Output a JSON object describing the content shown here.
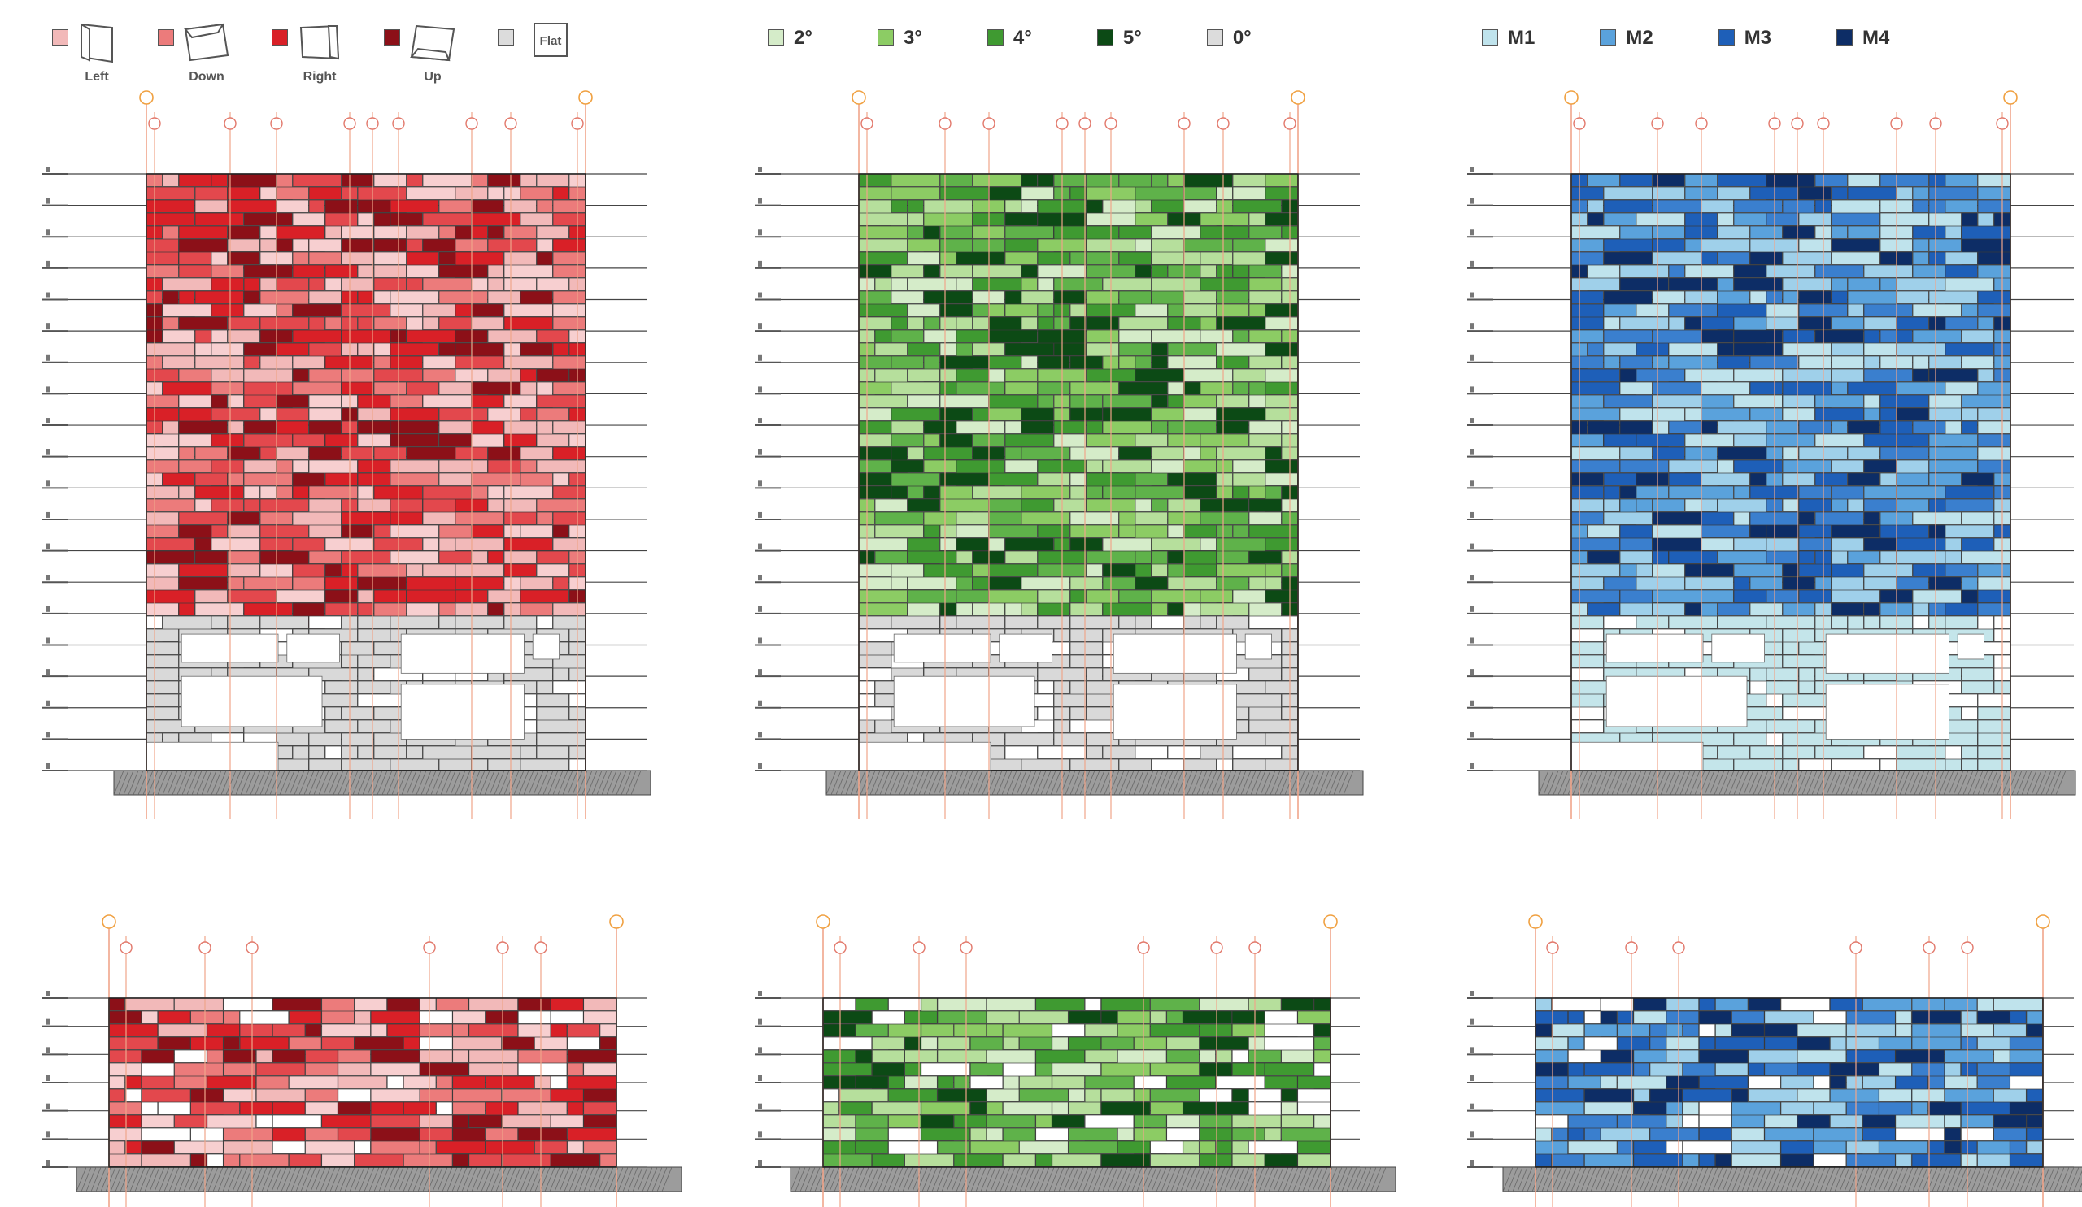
{
  "legends": {
    "orientation": {
      "items": [
        {
          "label": "Left",
          "color": "#f2b9b9",
          "icon": "panel-left-icon"
        },
        {
          "label": "Down",
          "color": "#ec7b7b",
          "icon": "panel-down-icon"
        },
        {
          "label": "Right",
          "color": "#d92027",
          "icon": "panel-right-icon"
        },
        {
          "label": "Up",
          "color": "#8c1018",
          "icon": "panel-up-icon"
        },
        {
          "label": "Flat",
          "color": "#dcdcdc",
          "icon": "panel-flat-icon",
          "icon_text": "Flat"
        }
      ]
    },
    "angle": {
      "items": [
        {
          "label": "2°",
          "color": "#d5ecc9"
        },
        {
          "label": "3°",
          "color": "#8ccc64"
        },
        {
          "label": "4°",
          "color": "#3f9a31"
        },
        {
          "label": "5°",
          "color": "#0c4a15"
        },
        {
          "label": "0°",
          "color": "#dcdcdc"
        }
      ]
    },
    "material": {
      "items": [
        {
          "label": "M1",
          "color": "#bfe3ec"
        },
        {
          "label": "M2",
          "color": "#5aa2dc"
        },
        {
          "label": "M3",
          "color": "#1e5fb8"
        },
        {
          "label": "M4",
          "color": "#0d2d66"
        }
      ]
    }
  },
  "palettes": {
    "red": [
      "#f7cfd0",
      "#f2b9b9",
      "#ec7b7b",
      "#e3484d",
      "#d92027",
      "#8c1018"
    ],
    "green": [
      "#d5ecc9",
      "#b6df9c",
      "#8ccc64",
      "#5fb24a",
      "#3f9a31",
      "#0c4a15"
    ],
    "blue": [
      "#bfe3ec",
      "#9fd0ea",
      "#5aa2dc",
      "#3a7fce",
      "#1e5fb8",
      "#0d2d66"
    ],
    "base_grey": "#d9d9d9",
    "base_light_blue": "#c4e5ea",
    "grid_line": "#333333",
    "axis_line": "#f0a58a",
    "axis_bubble": "#e2786b",
    "axis_bubble_end": "#f0a040"
  },
  "elevations": [
    {
      "id": "elevation-tall-orientation",
      "scheme": "red",
      "base": "grey",
      "size": "tall"
    },
    {
      "id": "elevation-tall-angle",
      "scheme": "green",
      "base": "grey",
      "size": "tall"
    },
    {
      "id": "elevation-tall-material",
      "scheme": "blue",
      "base": "light-blue",
      "size": "tall"
    },
    {
      "id": "elevation-short-orientation",
      "scheme": "red",
      "base": "none",
      "size": "short"
    },
    {
      "id": "elevation-short-angle",
      "scheme": "green",
      "base": "none",
      "size": "short"
    },
    {
      "id": "elevation-short-material",
      "scheme": "blue",
      "base": "none",
      "size": "short"
    }
  ]
}
